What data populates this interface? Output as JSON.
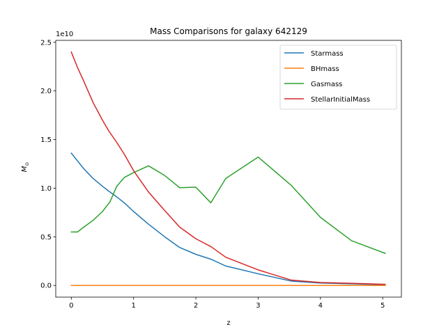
{
  "chart_data": {
    "type": "line",
    "title": "Mass Comparisons for galaxy 642129",
    "xlabel": "z",
    "ylabel": "M_⊙",
    "ylabel_base": "M",
    "ylabel_sub": "⊙",
    "offset_label": "1e10",
    "xlim": [
      -0.25,
      5.3
    ],
    "ylim": [
      -1.2,
      25.2
    ],
    "xticks": [
      0,
      1,
      2,
      3,
      4,
      5
    ],
    "xtick_labels": [
      "0",
      "1",
      "2",
      "3",
      "4",
      "5"
    ],
    "yticks": [
      0,
      5,
      10,
      15,
      20,
      25
    ],
    "ytick_labels": [
      "0.0",
      "0.5",
      "1.0",
      "1.5",
      "2.0",
      "2.5"
    ],
    "grid": false,
    "legend_position": "top-right",
    "y_unit_note": "values in units of 1e10",
    "series": [
      {
        "name": "Starmass",
        "color": "#1f77b4",
        "x": [
          0,
          0.1,
          0.2,
          0.35,
          0.5,
          0.6,
          0.73,
          0.85,
          1.0,
          1.24,
          1.5,
          1.74,
          2.0,
          2.24,
          2.48,
          3.0,
          3.53,
          4.0,
          4.5,
          5.04
        ],
        "y": [
          13.6,
          12.8,
          12.0,
          11.0,
          10.2,
          9.7,
          9.1,
          8.5,
          7.6,
          6.3,
          5.0,
          3.9,
          3.2,
          2.7,
          2.0,
          1.2,
          0.45,
          0.25,
          0.17,
          0.08
        ]
      },
      {
        "name": "BHmass",
        "color": "#ff7f0e",
        "x": [
          0,
          0.5,
          1.0,
          1.5,
          2.0,
          2.5,
          3.0,
          3.5,
          4.0,
          4.5,
          5.04
        ],
        "y": [
          0.0,
          0.0,
          0.0,
          0.0,
          0.0,
          0.0,
          0.0,
          0.0,
          0.0,
          0.0,
          0.0
        ]
      },
      {
        "name": "Gasmass",
        "color": "#2ca02c",
        "x": [
          0,
          0.1,
          0.2,
          0.35,
          0.5,
          0.62,
          0.73,
          0.85,
          1.0,
          1.24,
          1.5,
          1.74,
          2.0,
          2.24,
          2.48,
          3.0,
          3.53,
          4.0,
          4.5,
          5.04
        ],
        "y": [
          5.5,
          5.5,
          6.0,
          6.7,
          7.6,
          8.6,
          10.2,
          11.1,
          11.6,
          12.3,
          11.3,
          10.05,
          10.1,
          8.5,
          11.0,
          13.2,
          10.3,
          7.0,
          4.6,
          3.3
        ]
      },
      {
        "name": "StellarInitialMass",
        "color": "#d62728",
        "x": [
          0,
          0.1,
          0.2,
          0.35,
          0.5,
          0.6,
          0.73,
          0.85,
          1.0,
          1.24,
          1.5,
          1.74,
          2.0,
          2.24,
          2.48,
          3.0,
          3.53,
          4.0,
          4.5,
          5.04
        ],
        "y": [
          24.0,
          22.4,
          21.0,
          18.8,
          17.0,
          15.9,
          14.7,
          13.5,
          11.8,
          9.6,
          7.7,
          6.0,
          4.8,
          4.0,
          2.9,
          1.6,
          0.55,
          0.3,
          0.22,
          0.12
        ]
      }
    ]
  }
}
